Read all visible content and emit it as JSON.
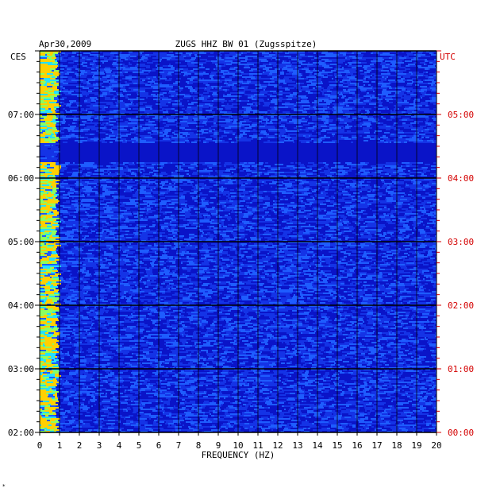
{
  "header": {
    "date": "Apr30,2009",
    "station": "ZUGS HHZ BW 01 (Zugsspitze)"
  },
  "chart_data": {
    "type": "heatmap",
    "title": "ZUGS HHZ BW 01 (Zugsspitze)",
    "date": "Apr30,2009",
    "xlabel": "FREQUENCY (HZ)",
    "xlim": [
      0,
      20
    ],
    "x_ticks": [
      "0",
      "1",
      "2",
      "3",
      "4",
      "5",
      "6",
      "7",
      "8",
      "9",
      "10",
      "11",
      "12",
      "13",
      "14",
      "15",
      "16",
      "17",
      "18",
      "19",
      "20"
    ],
    "left_axis": {
      "label": "CES",
      "ticks": [
        "02:00",
        "03:00",
        "04:00",
        "05:00",
        "06:00",
        "07:00"
      ]
    },
    "right_axis": {
      "label": "UTC",
      "ticks": [
        "00:00",
        "01:00",
        "02:00",
        "03:00",
        "04:00",
        "05:00"
      ]
    },
    "time_span_hours": 6,
    "grid": true,
    "colors": {
      "background_low": "#0a14c8",
      "mid": "#1e5cff",
      "high": "#26e0ff",
      "peak": "#ffd000",
      "right_axis": "#d40000",
      "left_axis": "#000000",
      "grid": "#000000"
    }
  },
  "footer_mark": "*"
}
